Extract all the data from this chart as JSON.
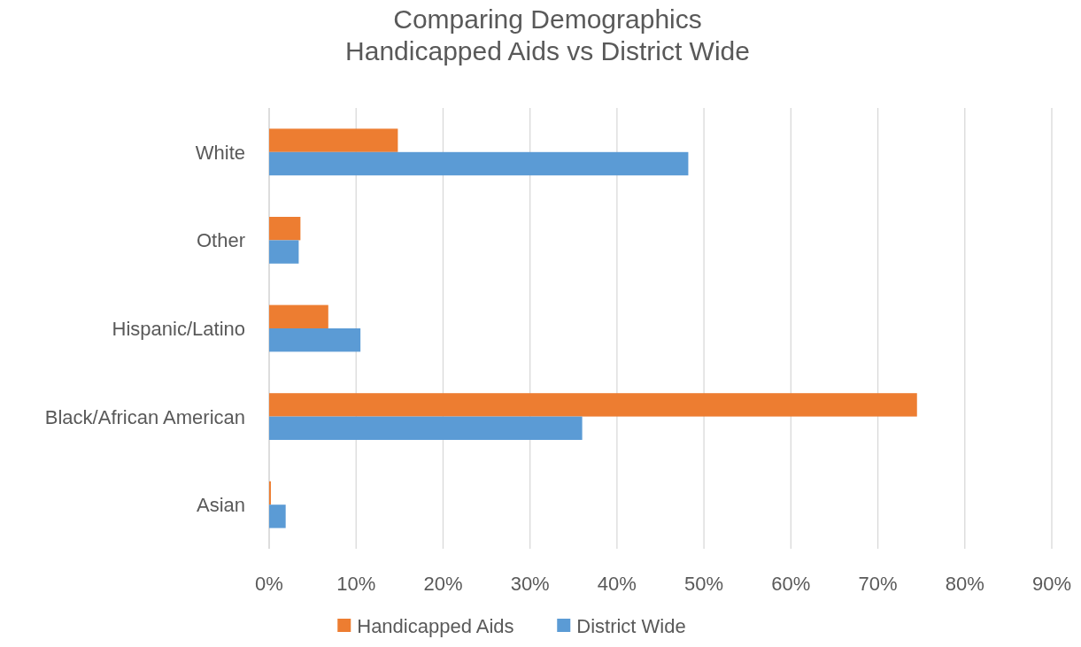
{
  "chart_data": {
    "type": "bar",
    "orientation": "horizontal",
    "title": "Comparing Demographics\nHandicapped Aids vs District Wide",
    "categories": [
      "White",
      "Other",
      "Hispanic/Latino",
      "Black/African American",
      "Asian"
    ],
    "series": [
      {
        "name": "Handicapped Aids",
        "color": "#ed7d31",
        "values": [
          14.8,
          3.6,
          6.8,
          74.5,
          0.2
        ]
      },
      {
        "name": "District Wide",
        "color": "#5b9bd5",
        "values": [
          48.2,
          3.4,
          10.5,
          36.0,
          1.9
        ]
      }
    ],
    "xlim": [
      0,
      90
    ],
    "xticks": [
      {
        "value": 0,
        "label": "0%"
      },
      {
        "value": 10,
        "label": "10%"
      },
      {
        "value": 20,
        "label": "20%"
      },
      {
        "value": 30,
        "label": "30%"
      },
      {
        "value": 40,
        "label": "40%"
      },
      {
        "value": 50,
        "label": "50%"
      },
      {
        "value": 60,
        "label": "60%"
      },
      {
        "value": 70,
        "label": "70%"
      },
      {
        "value": 80,
        "label": "80%"
      },
      {
        "value": 90,
        "label": "90%"
      }
    ],
    "grid": "x",
    "legend": "bottom"
  }
}
